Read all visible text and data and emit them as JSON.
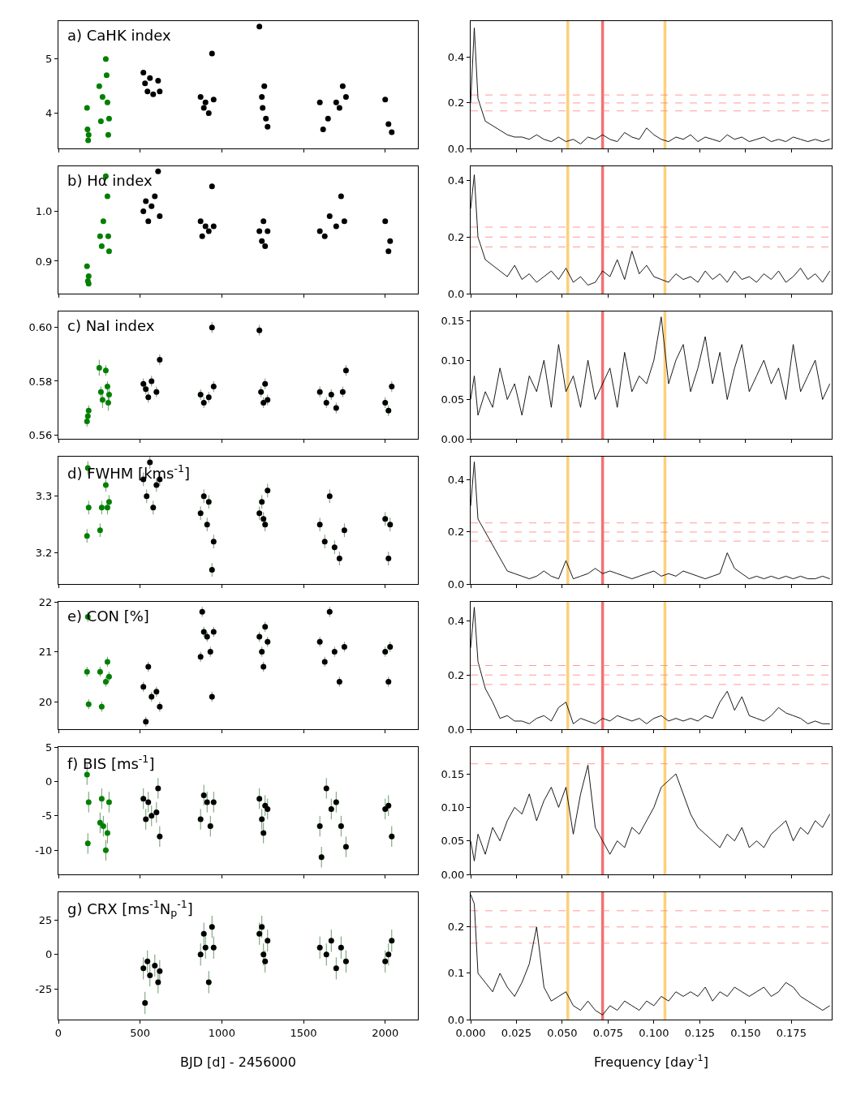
{
  "chart_data": [
    {
      "type": "scatter",
      "annotations": [
        "a) CaHK index"
      ],
      "xlim": [
        0,
        2200
      ],
      "xticks": [
        0,
        500,
        1000,
        1500,
        2000
      ],
      "ylim": [
        3.35,
        5.7
      ],
      "yticks": [
        4,
        5
      ],
      "tick_labels": "y",
      "marker": "circle",
      "series": [
        {
          "color": "#008000",
          "x": [
            175,
            178,
            182,
            185,
            250,
            260,
            270,
            290,
            295,
            300,
            305,
            310
          ],
          "values": [
            4.1,
            3.7,
            3.5,
            3.6,
            4.5,
            3.85,
            4.3,
            5.0,
            4.7,
            4.2,
            3.6,
            3.9
          ]
        },
        {
          "color": "#000000",
          "x": [
            520,
            530,
            545,
            560,
            580,
            610,
            620,
            870,
            890,
            900,
            920,
            940,
            950,
            1230,
            1245,
            1250,
            1260,
            1280,
            1270,
            1600,
            1620,
            1650,
            1700,
            1720,
            1740,
            1760,
            2000,
            2020,
            2040
          ],
          "values": [
            4.75,
            4.55,
            4.4,
            4.65,
            4.35,
            4.6,
            4.4,
            4.3,
            4.1,
            4.2,
            4.0,
            5.1,
            4.25,
            5.6,
            4.3,
            4.1,
            4.5,
            3.75,
            3.9,
            4.2,
            3.7,
            3.9,
            4.2,
            4.1,
            4.5,
            4.3,
            4.25,
            3.8,
            3.65
          ]
        }
      ]
    },
    {
      "type": "line",
      "xlim": [
        0,
        0.197
      ],
      "xticks": [
        0,
        0.025,
        0.05,
        0.075,
        0.1,
        0.125,
        0.15,
        0.175
      ],
      "ylim": [
        0,
        0.56
      ],
      "yticks": [
        {
          "value": 0,
          "label": "0.0"
        },
        0.2,
        0.4
      ],
      "tick_labels": "y",
      "marker": "none",
      "line_style": "solid",
      "x": [
        0,
        0.002,
        0.004,
        0.008,
        0.012,
        0.016,
        0.02,
        0.024,
        0.028,
        0.032,
        0.036,
        0.04,
        0.044,
        0.048,
        0.052,
        0.056,
        0.06,
        0.064,
        0.068,
        0.072,
        0.076,
        0.08,
        0.084,
        0.088,
        0.092,
        0.096,
        0.1,
        0.104,
        0.108,
        0.112,
        0.116,
        0.12,
        0.124,
        0.128,
        0.132,
        0.136,
        0.14,
        0.144,
        0.148,
        0.152,
        0.156,
        0.16,
        0.164,
        0.168,
        0.172,
        0.176,
        0.18,
        0.184,
        0.188,
        0.192,
        0.196
      ],
      "series": [
        {
          "color": "#000000",
          "values": [
            0.2,
            0.53,
            0.22,
            0.12,
            0.1,
            0.08,
            0.06,
            0.05,
            0.05,
            0.04,
            0.06,
            0.04,
            0.03,
            0.05,
            0.03,
            0.04,
            0.02,
            0.05,
            0.04,
            0.06,
            0.04,
            0.03,
            0.07,
            0.05,
            0.04,
            0.09,
            0.06,
            0.04,
            0.03,
            0.05,
            0.04,
            0.06,
            0.03,
            0.05,
            0.04,
            0.03,
            0.06,
            0.04,
            0.05,
            0.03,
            0.04,
            0.05,
            0.03,
            0.04,
            0.03,
            0.05,
            0.04,
            0.03,
            0.04,
            0.03,
            0.04
          ]
        }
      ],
      "ref_lines": [
        {
          "axis": "x",
          "value": 0.053,
          "color": "#fdd07a"
        },
        {
          "axis": "x",
          "value": 0.072,
          "color": "#f47070"
        },
        {
          "axis": "x",
          "value": 0.106,
          "color": "#fdd07a"
        },
        {
          "axis": "y",
          "value": 0.235,
          "color": "#ff8080",
          "line_style": "dashed"
        },
        {
          "axis": "y",
          "value": 0.2,
          "color": "#ff8080",
          "line_style": "dashed"
        },
        {
          "axis": "y",
          "value": 0.165,
          "color": "#ff8080",
          "line_style": "dashed"
        }
      ]
    },
    {
      "type": "scatter",
      "annotations": [
        "b) Hα index"
      ],
      "xlim": [
        0,
        2200
      ],
      "xticks": [
        0,
        500,
        1000,
        1500,
        2000
      ],
      "ylim": [
        0.835,
        1.09
      ],
      "yticks": [
        0.9,
        {
          "value": 1,
          "label": "1.0"
        }
      ],
      "tick_labels": "y",
      "marker": "circle",
      "series": [
        {
          "color": "#008000",
          "x": [
            175,
            180,
            185,
            185,
            255,
            265,
            275,
            290,
            300,
            305,
            310
          ],
          "values": [
            0.89,
            0.86,
            0.87,
            0.855,
            0.95,
            0.93,
            0.98,
            1.07,
            1.03,
            0.95,
            0.92
          ]
        },
        {
          "color": "#000000",
          "x": [
            520,
            535,
            550,
            570,
            590,
            610,
            620,
            870,
            880,
            900,
            920,
            940,
            950,
            1230,
            1245,
            1255,
            1265,
            1280,
            1600,
            1630,
            1660,
            1700,
            1730,
            1750,
            2000,
            2020,
            2030
          ],
          "values": [
            1.0,
            1.02,
            0.98,
            1.01,
            1.03,
            1.08,
            0.99,
            0.98,
            0.95,
            0.97,
            0.96,
            1.05,
            0.97,
            0.96,
            0.94,
            0.98,
            0.93,
            0.96,
            0.96,
            0.95,
            0.99,
            0.97,
            1.03,
            0.98,
            0.98,
            0.92,
            0.94
          ]
        }
      ]
    },
    {
      "type": "line",
      "xlim": [
        0,
        0.197
      ],
      "xticks": [
        0,
        0.025,
        0.05,
        0.075,
        0.1,
        0.125,
        0.15,
        0.175
      ],
      "ylim": [
        0,
        0.45
      ],
      "yticks": [
        {
          "value": 0,
          "label": "0.0"
        },
        0.2,
        0.4
      ],
      "tick_labels": "y",
      "marker": "none",
      "line_style": "solid",
      "x": [
        0,
        0.002,
        0.004,
        0.008,
        0.012,
        0.016,
        0.02,
        0.024,
        0.028,
        0.032,
        0.036,
        0.04,
        0.044,
        0.048,
        0.052,
        0.056,
        0.06,
        0.064,
        0.068,
        0.072,
        0.076,
        0.08,
        0.084,
        0.088,
        0.092,
        0.096,
        0.1,
        0.104,
        0.108,
        0.112,
        0.116,
        0.12,
        0.124,
        0.128,
        0.132,
        0.136,
        0.14,
        0.144,
        0.148,
        0.152,
        0.156,
        0.16,
        0.164,
        0.168,
        0.172,
        0.176,
        0.18,
        0.184,
        0.188,
        0.192,
        0.196
      ],
      "series": [
        {
          "color": "#000000",
          "values": [
            0.3,
            0.42,
            0.2,
            0.12,
            0.1,
            0.08,
            0.06,
            0.1,
            0.05,
            0.07,
            0.04,
            0.06,
            0.08,
            0.05,
            0.09,
            0.04,
            0.06,
            0.03,
            0.04,
            0.08,
            0.06,
            0.12,
            0.05,
            0.15,
            0.07,
            0.1,
            0.06,
            0.05,
            0.04,
            0.07,
            0.05,
            0.06,
            0.04,
            0.08,
            0.05,
            0.07,
            0.04,
            0.08,
            0.05,
            0.06,
            0.04,
            0.07,
            0.05,
            0.08,
            0.04,
            0.06,
            0.09,
            0.05,
            0.07,
            0.04,
            0.08
          ]
        }
      ],
      "ref_lines": [
        {
          "axis": "x",
          "value": 0.053,
          "color": "#fdd07a"
        },
        {
          "axis": "x",
          "value": 0.072,
          "color": "#f47070"
        },
        {
          "axis": "x",
          "value": 0.106,
          "color": "#fdd07a"
        },
        {
          "axis": "y",
          "value": 0.235,
          "color": "#ff8080",
          "line_style": "dashed"
        },
        {
          "axis": "y",
          "value": 0.2,
          "color": "#ff8080",
          "line_style": "dashed"
        },
        {
          "axis": "y",
          "value": 0.165,
          "color": "#ff8080",
          "line_style": "dashed"
        }
      ]
    },
    {
      "type": "scatter",
      "annotations": [
        "c) NaI index"
      ],
      "xlim": [
        0,
        2200
      ],
      "xticks": [
        0,
        500,
        1000,
        1500,
        2000
      ],
      "ylim": [
        0.5585,
        0.606
      ],
      "yticks": [
        0.56,
        0.58,
        {
          "value": 0.6,
          "label": "0.60"
        }
      ],
      "tick_labels": "y",
      "marker": "circle",
      "series": [
        {
          "color": "#008000",
          "x": [
            175,
            180,
            185,
            250,
            260,
            270,
            290,
            300,
            305,
            310
          ],
          "values": [
            0.565,
            0.567,
            0.569,
            0.585,
            0.576,
            0.573,
            0.584,
            0.578,
            0.572,
            0.575
          ],
          "errors": [
            0.002,
            0.002,
            0.002,
            0.003,
            0.002,
            0.003,
            0.002,
            0.002,
            0.003,
            0.002
          ]
        },
        {
          "color": "#000000",
          "x": [
            520,
            535,
            550,
            570,
            600,
            620,
            870,
            890,
            920,
            940,
            950,
            1230,
            1240,
            1255,
            1265,
            1280,
            1600,
            1640,
            1670,
            1700,
            1740,
            1760,
            2000,
            2020,
            2040
          ],
          "values": [
            0.579,
            0.577,
            0.574,
            0.58,
            0.576,
            0.588,
            0.575,
            0.572,
            0.574,
            0.6,
            0.578,
            0.599,
            0.576,
            0.572,
            0.579,
            0.573,
            0.576,
            0.572,
            0.575,
            0.57,
            0.576,
            0.584,
            0.572,
            0.569,
            0.578
          ],
          "errors": [
            0.002,
            0.002,
            0.002,
            0.002,
            0.002,
            0.002,
            0.002,
            0.002,
            0.002,
            0.002,
            0.002,
            0.002,
            0.002,
            0.002,
            0.002,
            0.002,
            0.002,
            0.002,
            0.002,
            0.002,
            0.002,
            0.002,
            0.002,
            0.002,
            0.002
          ]
        }
      ]
    },
    {
      "type": "line",
      "xlim": [
        0,
        0.197
      ],
      "xticks": [
        0,
        0.025,
        0.05,
        0.075,
        0.1,
        0.125,
        0.15,
        0.175
      ],
      "ylim": [
        0,
        0.162
      ],
      "yticks": [
        {
          "value": 0,
          "label": "0.00"
        },
        0.05,
        {
          "value": 0.1,
          "label": "0.10"
        },
        0.15
      ],
      "tick_labels": "y",
      "marker": "none",
      "line_style": "solid",
      "x": [
        0,
        0.002,
        0.004,
        0.008,
        0.012,
        0.016,
        0.02,
        0.024,
        0.028,
        0.032,
        0.036,
        0.04,
        0.044,
        0.048,
        0.052,
        0.056,
        0.06,
        0.064,
        0.068,
        0.072,
        0.076,
        0.08,
        0.084,
        0.088,
        0.092,
        0.096,
        0.1,
        0.104,
        0.108,
        0.112,
        0.116,
        0.12,
        0.124,
        0.128,
        0.132,
        0.136,
        0.14,
        0.144,
        0.148,
        0.152,
        0.156,
        0.16,
        0.164,
        0.168,
        0.172,
        0.176,
        0.18,
        0.184,
        0.188,
        0.192,
        0.196
      ],
      "series": [
        {
          "color": "#000000",
          "values": [
            0.05,
            0.08,
            0.03,
            0.06,
            0.04,
            0.09,
            0.05,
            0.07,
            0.03,
            0.08,
            0.06,
            0.1,
            0.04,
            0.12,
            0.06,
            0.08,
            0.04,
            0.1,
            0.05,
            0.07,
            0.09,
            0.04,
            0.11,
            0.06,
            0.08,
            0.07,
            0.1,
            0.155,
            0.07,
            0.1,
            0.12,
            0.06,
            0.09,
            0.13,
            0.07,
            0.11,
            0.05,
            0.09,
            0.12,
            0.06,
            0.08,
            0.1,
            0.07,
            0.09,
            0.05,
            0.12,
            0.06,
            0.08,
            0.1,
            0.05,
            0.07
          ]
        }
      ],
      "ref_lines": [
        {
          "axis": "x",
          "value": 0.053,
          "color": "#fdd07a"
        },
        {
          "axis": "x",
          "value": 0.072,
          "color": "#f47070"
        },
        {
          "axis": "x",
          "value": 0.106,
          "color": "#fdd07a"
        }
      ]
    },
    {
      "type": "scatter",
      "annotations": [
        "d) FWHM [kms$^{-1}$]"
      ],
      "xlim": [
        0,
        2200
      ],
      "xticks": [
        0,
        500,
        1000,
        1500,
        2000
      ],
      "ylim": [
        3.145,
        3.37
      ],
      "yticks": [
        3.2,
        3.3
      ],
      "tick_labels": "y",
      "marker": "circle",
      "series": [
        {
          "color": "#008000",
          "x": [
            175,
            180,
            185,
            255,
            265,
            290,
            300,
            310
          ],
          "values": [
            3.23,
            3.35,
            3.28,
            3.24,
            3.28,
            3.32,
            3.28,
            3.29
          ],
          "errors": [
            0.012,
            0.012,
            0.012,
            0.012,
            0.012,
            0.012,
            0.012,
            0.012
          ]
        },
        {
          "color": "#000000",
          "x": [
            520,
            540,
            560,
            580,
            600,
            620,
            870,
            890,
            910,
            920,
            940,
            950,
            1230,
            1245,
            1255,
            1265,
            1280,
            1600,
            1630,
            1660,
            1690,
            1720,
            1750,
            2000,
            2020,
            2030
          ],
          "values": [
            3.33,
            3.3,
            3.36,
            3.28,
            3.32,
            3.33,
            3.27,
            3.3,
            3.25,
            3.29,
            3.17,
            3.22,
            3.27,
            3.29,
            3.26,
            3.25,
            3.31,
            3.25,
            3.22,
            3.3,
            3.21,
            3.19,
            3.24,
            3.26,
            3.19,
            3.25
          ],
          "errors": [
            0.012,
            0.012,
            0.012,
            0.012,
            0.012,
            0.012,
            0.012,
            0.012,
            0.012,
            0.012,
            0.012,
            0.012,
            0.012,
            0.012,
            0.012,
            0.012,
            0.012,
            0.012,
            0.012,
            0.012,
            0.012,
            0.012,
            0.012,
            0.012,
            0.012,
            0.012
          ]
        }
      ]
    },
    {
      "type": "line",
      "xlim": [
        0,
        0.197
      ],
      "xticks": [
        0,
        0.025,
        0.05,
        0.075,
        0.1,
        0.125,
        0.15,
        0.175
      ],
      "ylim": [
        0,
        0.49
      ],
      "yticks": [
        {
          "value": 0,
          "label": "0.0"
        },
        0.2,
        0.4
      ],
      "tick_labels": "y",
      "marker": "none",
      "line_style": "solid",
      "x": [
        0,
        0.002,
        0.004,
        0.008,
        0.012,
        0.016,
        0.02,
        0.024,
        0.028,
        0.032,
        0.036,
        0.04,
        0.044,
        0.048,
        0.052,
        0.056,
        0.06,
        0.064,
        0.068,
        0.072,
        0.076,
        0.08,
        0.084,
        0.088,
        0.092,
        0.096,
        0.1,
        0.104,
        0.108,
        0.112,
        0.116,
        0.12,
        0.124,
        0.128,
        0.132,
        0.136,
        0.14,
        0.144,
        0.148,
        0.152,
        0.156,
        0.16,
        0.164,
        0.168,
        0.172,
        0.176,
        0.18,
        0.184,
        0.188,
        0.192,
        0.196
      ],
      "series": [
        {
          "color": "#000000",
          "values": [
            0.3,
            0.47,
            0.25,
            0.2,
            0.15,
            0.1,
            0.05,
            0.04,
            0.03,
            0.02,
            0.03,
            0.05,
            0.03,
            0.02,
            0.09,
            0.02,
            0.03,
            0.04,
            0.06,
            0.04,
            0.05,
            0.04,
            0.03,
            0.02,
            0.03,
            0.04,
            0.05,
            0.03,
            0.04,
            0.03,
            0.05,
            0.04,
            0.03,
            0.02,
            0.03,
            0.04,
            0.12,
            0.06,
            0.04,
            0.02,
            0.03,
            0.02,
            0.03,
            0.02,
            0.03,
            0.02,
            0.03,
            0.02,
            0.02,
            0.03,
            0.02
          ]
        }
      ],
      "ref_lines": [
        {
          "axis": "x",
          "value": 0.053,
          "color": "#fdd07a"
        },
        {
          "axis": "x",
          "value": 0.072,
          "color": "#f47070"
        },
        {
          "axis": "x",
          "value": 0.106,
          "color": "#fdd07a"
        },
        {
          "axis": "y",
          "value": 0.235,
          "color": "#ff8080",
          "line_style": "dashed"
        },
        {
          "axis": "y",
          "value": 0.2,
          "color": "#ff8080",
          "line_style": "dashed"
        },
        {
          "axis": "y",
          "value": 0.165,
          "color": "#ff8080",
          "line_style": "dashed"
        }
      ]
    },
    {
      "type": "scatter",
      "annotations": [
        "e) CON [%]"
      ],
      "xlim": [
        0,
        2200
      ],
      "xticks": [
        0,
        500,
        1000,
        1500,
        2000
      ],
      "ylim": [
        19.45,
        22
      ],
      "yticks": [
        20,
        21,
        22
      ],
      "tick_labels": "y",
      "marker": "circle",
      "series": [
        {
          "color": "#008000",
          "x": [
            175,
            180,
            185,
            255,
            265,
            290,
            300,
            310
          ],
          "values": [
            20.6,
            21.7,
            19.95,
            20.6,
            19.9,
            20.4,
            20.8,
            20.5
          ],
          "errors": [
            0.1,
            0.1,
            0.1,
            0.1,
            0.1,
            0.1,
            0.1,
            0.1
          ]
        },
        {
          "color": "#000000",
          "x": [
            520,
            535,
            550,
            570,
            600,
            620,
            870,
            880,
            890,
            910,
            930,
            940,
            950,
            1230,
            1245,
            1255,
            1265,
            1280,
            1600,
            1630,
            1660,
            1690,
            1720,
            1750,
            2000,
            2020,
            2030
          ],
          "values": [
            20.3,
            19.6,
            20.7,
            20.1,
            20.2,
            19.9,
            20.9,
            21.8,
            21.4,
            21.3,
            21.0,
            20.1,
            21.4,
            21.3,
            21.0,
            20.7,
            21.5,
            21.2,
            21.2,
            20.8,
            21.8,
            21.0,
            20.4,
            21.1,
            21.0,
            20.4,
            21.1
          ],
          "errors": [
            0.1,
            0.1,
            0.1,
            0.1,
            0.1,
            0.1,
            0.1,
            0.1,
            0.1,
            0.1,
            0.1,
            0.1,
            0.1,
            0.1,
            0.1,
            0.1,
            0.1,
            0.1,
            0.1,
            0.1,
            0.1,
            0.1,
            0.1,
            0.1,
            0.1,
            0.1,
            0.1
          ]
        }
      ]
    },
    {
      "type": "line",
      "xlim": [
        0,
        0.197
      ],
      "xticks": [
        0,
        0.025,
        0.05,
        0.075,
        0.1,
        0.125,
        0.15,
        0.175
      ],
      "ylim": [
        0,
        0.47
      ],
      "yticks": [
        {
          "value": 0,
          "label": "0.0"
        },
        0.2,
        0.4
      ],
      "tick_labels": "y",
      "marker": "none",
      "line_style": "solid",
      "x": [
        0,
        0.002,
        0.004,
        0.008,
        0.012,
        0.016,
        0.02,
        0.024,
        0.028,
        0.032,
        0.036,
        0.04,
        0.044,
        0.048,
        0.052,
        0.056,
        0.06,
        0.064,
        0.068,
        0.072,
        0.076,
        0.08,
        0.084,
        0.088,
        0.092,
        0.096,
        0.1,
        0.104,
        0.108,
        0.112,
        0.116,
        0.12,
        0.124,
        0.128,
        0.132,
        0.136,
        0.14,
        0.144,
        0.148,
        0.152,
        0.156,
        0.16,
        0.164,
        0.168,
        0.172,
        0.176,
        0.18,
        0.184,
        0.188,
        0.192,
        0.196
      ],
      "series": [
        {
          "color": "#000000",
          "values": [
            0.3,
            0.45,
            0.25,
            0.15,
            0.1,
            0.04,
            0.05,
            0.03,
            0.03,
            0.02,
            0.04,
            0.05,
            0.03,
            0.08,
            0.1,
            0.02,
            0.04,
            0.03,
            0.02,
            0.04,
            0.03,
            0.05,
            0.04,
            0.03,
            0.04,
            0.02,
            0.04,
            0.05,
            0.03,
            0.04,
            0.03,
            0.04,
            0.03,
            0.05,
            0.04,
            0.1,
            0.14,
            0.07,
            0.12,
            0.05,
            0.04,
            0.03,
            0.05,
            0.08,
            0.06,
            0.05,
            0.04,
            0.02,
            0.03,
            0.02,
            0.02
          ]
        }
      ],
      "ref_lines": [
        {
          "axis": "x",
          "value": 0.053,
          "color": "#fdd07a"
        },
        {
          "axis": "x",
          "value": 0.072,
          "color": "#f47070"
        },
        {
          "axis": "x",
          "value": 0.106,
          "color": "#fdd07a"
        },
        {
          "axis": "y",
          "value": 0.235,
          "color": "#ff8080",
          "line_style": "dashed"
        },
        {
          "axis": "y",
          "value": 0.2,
          "color": "#ff8080",
          "line_style": "dashed"
        },
        {
          "axis": "y",
          "value": 0.165,
          "color": "#ff8080",
          "line_style": "dashed"
        }
      ]
    },
    {
      "type": "scatter",
      "annotations": [
        "f) BIS [ms$^{-1}$]"
      ],
      "xlim": [
        0,
        2200
      ],
      "xticks": [
        0,
        500,
        1000,
        1500,
        2000
      ],
      "ylim": [
        -13.5,
        5
      ],
      "yticks": [
        -10,
        -5,
        0,
        5
      ],
      "tick_labels": "y",
      "marker": "circle",
      "series": [
        {
          "color": "#008000",
          "x": [
            175,
            180,
            185,
            255,
            265,
            275,
            290,
            300,
            310
          ],
          "values": [
            1.0,
            -9.0,
            -3.0,
            -6.0,
            -2.5,
            -6.5,
            -10,
            -7.5,
            -3.0
          ],
          "errors": [
            1.5,
            1.5,
            1.5,
            1.5,
            1.5,
            1.5,
            1.5,
            1.5,
            1.5
          ]
        },
        {
          "color": "#000000",
          "x": [
            520,
            535,
            550,
            570,
            600,
            610,
            620,
            870,
            890,
            910,
            930,
            950,
            1230,
            1245,
            1255,
            1265,
            1280,
            1600,
            1610,
            1640,
            1670,
            1700,
            1730,
            1760,
            2000,
            2020,
            2040
          ],
          "values": [
            -2.5,
            -5.5,
            -3.0,
            -5.0,
            -4.5,
            -1.0,
            -8.0,
            -5.5,
            -2.0,
            -3.0,
            -6.5,
            -3.0,
            -2.5,
            -5.5,
            -7.5,
            -3.5,
            -4.0,
            -6.5,
            -11,
            -1.0,
            -4.0,
            -3.0,
            -6.5,
            -9.5,
            -4.0,
            -3.5,
            -8.0
          ],
          "errors": [
            1.5,
            1.5,
            1.5,
            1.5,
            1.5,
            1.5,
            1.5,
            1.5,
            1.5,
            1.5,
            1.5,
            1.5,
            1.5,
            1.5,
            1.5,
            1.5,
            1.5,
            1.5,
            1.5,
            1.5,
            1.5,
            1.5,
            1.5,
            1.5,
            1.5,
            1.5,
            1.5
          ]
        }
      ]
    },
    {
      "type": "line",
      "xlim": [
        0,
        0.197
      ],
      "xticks": [
        0,
        0.025,
        0.05,
        0.075,
        0.1,
        0.125,
        0.15,
        0.175
      ],
      "ylim": [
        0,
        0.19
      ],
      "yticks": [
        {
          "value": 0,
          "label": "0.00"
        },
        0.05,
        {
          "value": 0.1,
          "label": "0.10"
        },
        0.15
      ],
      "tick_labels": "y",
      "marker": "none",
      "line_style": "solid",
      "x": [
        0,
        0.002,
        0.004,
        0.008,
        0.012,
        0.016,
        0.02,
        0.024,
        0.028,
        0.032,
        0.036,
        0.04,
        0.044,
        0.048,
        0.052,
        0.056,
        0.06,
        0.064,
        0.068,
        0.072,
        0.076,
        0.08,
        0.084,
        0.088,
        0.092,
        0.096,
        0.1,
        0.104,
        0.108,
        0.112,
        0.116,
        0.12,
        0.124,
        0.128,
        0.132,
        0.136,
        0.14,
        0.144,
        0.148,
        0.152,
        0.156,
        0.16,
        0.164,
        0.168,
        0.172,
        0.176,
        0.18,
        0.184,
        0.188,
        0.192,
        0.196
      ],
      "series": [
        {
          "color": "#000000",
          "values": [
            0.05,
            0.02,
            0.06,
            0.03,
            0.07,
            0.05,
            0.08,
            0.1,
            0.09,
            0.12,
            0.08,
            0.11,
            0.13,
            0.1,
            0.13,
            0.06,
            0.12,
            0.163,
            0.07,
            0.05,
            0.03,
            0.05,
            0.04,
            0.07,
            0.06,
            0.08,
            0.1,
            0.13,
            0.14,
            0.15,
            0.12,
            0.09,
            0.07,
            0.06,
            0.05,
            0.04,
            0.06,
            0.05,
            0.07,
            0.04,
            0.05,
            0.04,
            0.06,
            0.07,
            0.08,
            0.05,
            0.07,
            0.06,
            0.08,
            0.07,
            0.09
          ]
        }
      ],
      "ref_lines": [
        {
          "axis": "x",
          "value": 0.053,
          "color": "#fdd07a"
        },
        {
          "axis": "x",
          "value": 0.072,
          "color": "#f47070"
        },
        {
          "axis": "x",
          "value": 0.106,
          "color": "#fdd07a"
        },
        {
          "axis": "y",
          "value": 0.165,
          "color": "#ff8080",
          "line_style": "dashed"
        }
      ]
    },
    {
      "type": "scatter",
      "annotations": [
        "g) CRX [ms$^{-1}$N$_{p}$$^{-1}$]"
      ],
      "xlim": [
        0,
        2200
      ],
      "xticks": [
        0,
        500,
        1000,
        1500,
        2000
      ],
      "ylim": [
        -47,
        45
      ],
      "yticks": [
        -25,
        0,
        25
      ],
      "xlabel": "BJD [d] - 2456000",
      "marker": "circle",
      "series": [
        {
          "color": "#000000",
          "x": [
            520,
            530,
            545,
            560,
            590,
            610,
            620,
            870,
            890,
            900,
            920,
            940,
            950,
            1230,
            1245,
            1255,
            1265,
            1280,
            1600,
            1640,
            1670,
            1700,
            1730,
            1760,
            2000,
            2020,
            2040
          ],
          "values": [
            -10,
            -35,
            -5,
            -15,
            -8,
            -20,
            -12,
            0,
            15,
            5,
            -20,
            20,
            5,
            15,
            20,
            0,
            -5,
            10,
            5,
            0,
            10,
            -10,
            5,
            -5,
            -5,
            0,
            10
          ],
          "errors": [
            8,
            8,
            8,
            8,
            8,
            8,
            8,
            8,
            8,
            8,
            8,
            8,
            8,
            8,
            8,
            8,
            8,
            8,
            8,
            8,
            8,
            8,
            8,
            8,
            8,
            8,
            8
          ]
        }
      ]
    },
    {
      "type": "line",
      "xlim": [
        0,
        0.197
      ],
      "xticks": [
        {
          "value": 0,
          "label": "0.000"
        },
        0.025,
        {
          "value": 0.05,
          "label": "0.050"
        },
        0.075,
        {
          "value": 0.1,
          "label": "0.100"
        },
        0.125,
        {
          "value": 0.15,
          "label": "0.150"
        },
        0.175
      ],
      "ylim": [
        0,
        0.275
      ],
      "yticks": [
        {
          "value": 0,
          "label": "0.0"
        },
        0.1,
        0.2
      ],
      "xlabel": "Frequency [day$^{-1}$]",
      "marker": "none",
      "line_style": "solid",
      "x": [
        0,
        0.002,
        0.004,
        0.008,
        0.012,
        0.016,
        0.02,
        0.024,
        0.028,
        0.032,
        0.036,
        0.04,
        0.044,
        0.048,
        0.052,
        0.056,
        0.06,
        0.064,
        0.068,
        0.072,
        0.076,
        0.08,
        0.084,
        0.088,
        0.092,
        0.096,
        0.1,
        0.104,
        0.108,
        0.112,
        0.116,
        0.12,
        0.124,
        0.128,
        0.132,
        0.136,
        0.14,
        0.144,
        0.148,
        0.152,
        0.156,
        0.16,
        0.164,
        0.168,
        0.172,
        0.176,
        0.18,
        0.184,
        0.188,
        0.192,
        0.196
      ],
      "series": [
        {
          "color": "#000000",
          "values": [
            0.27,
            0.25,
            0.1,
            0.08,
            0.06,
            0.1,
            0.07,
            0.05,
            0.08,
            0.12,
            0.2,
            0.07,
            0.04,
            0.05,
            0.06,
            0.03,
            0.02,
            0.04,
            0.02,
            0.01,
            0.03,
            0.02,
            0.04,
            0.03,
            0.02,
            0.04,
            0.03,
            0.05,
            0.04,
            0.06,
            0.05,
            0.06,
            0.05,
            0.07,
            0.04,
            0.06,
            0.05,
            0.07,
            0.06,
            0.05,
            0.06,
            0.07,
            0.05,
            0.06,
            0.08,
            0.07,
            0.05,
            0.04,
            0.03,
            0.02,
            0.03
          ]
        }
      ],
      "ref_lines": [
        {
          "axis": "x",
          "value": 0.053,
          "color": "#fdd07a"
        },
        {
          "axis": "x",
          "value": 0.072,
          "color": "#f47070"
        },
        {
          "axis": "x",
          "value": 0.106,
          "color": "#fdd07a"
        },
        {
          "axis": "y",
          "value": 0.235,
          "color": "#ff8080",
          "line_style": "dashed"
        },
        {
          "axis": "y",
          "value": 0.2,
          "color": "#ff8080",
          "line_style": "dashed"
        },
        {
          "axis": "y",
          "value": 0.165,
          "color": "#ff8080",
          "line_style": "dashed"
        }
      ]
    }
  ]
}
